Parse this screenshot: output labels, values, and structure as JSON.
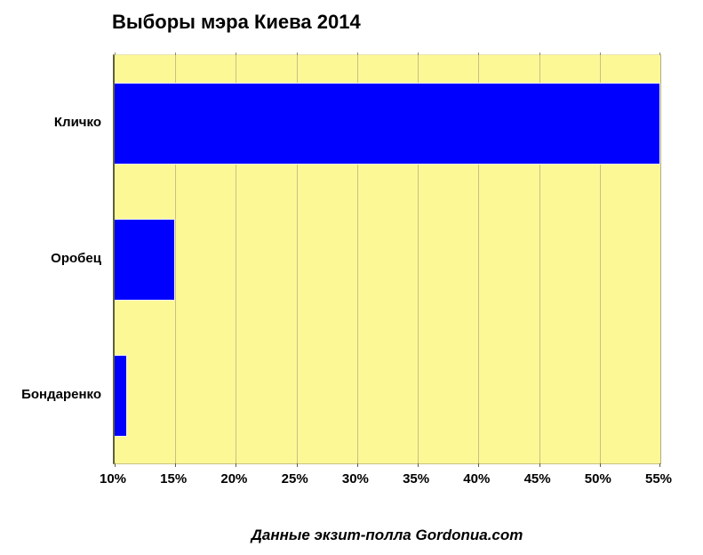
{
  "title": "Выборы мэра Киева 2014",
  "caption": "Данные экзит-полла Gordonua.com",
  "colors": {
    "bar": "#0000FF",
    "plot_background": "#FCF896",
    "gridline": "#C9C083",
    "axis_line": "#5E5E3E",
    "text": "#000000",
    "page_background": "#FFFFFF"
  },
  "chart_data": {
    "type": "bar",
    "orientation": "horizontal",
    "title": "Выборы мэра Киева 2014",
    "caption": "Данные экзит-полла Gordonua.com",
    "categories": [
      "Кличко",
      "Оробец",
      "Бондаренко"
    ],
    "values": [
      55,
      15,
      11
    ],
    "value_unit": "%",
    "xlabel": "",
    "ylabel": "",
    "xlim": [
      10,
      55
    ],
    "x_tick_values": [
      10,
      15,
      20,
      25,
      30,
      35,
      40,
      45,
      50,
      55
    ],
    "x_tick_labels": [
      "10%",
      "15%",
      "20%",
      "25%",
      "30%",
      "35%",
      "40%",
      "45%",
      "50%",
      "55%"
    ],
    "grid": true,
    "legend": false
  }
}
